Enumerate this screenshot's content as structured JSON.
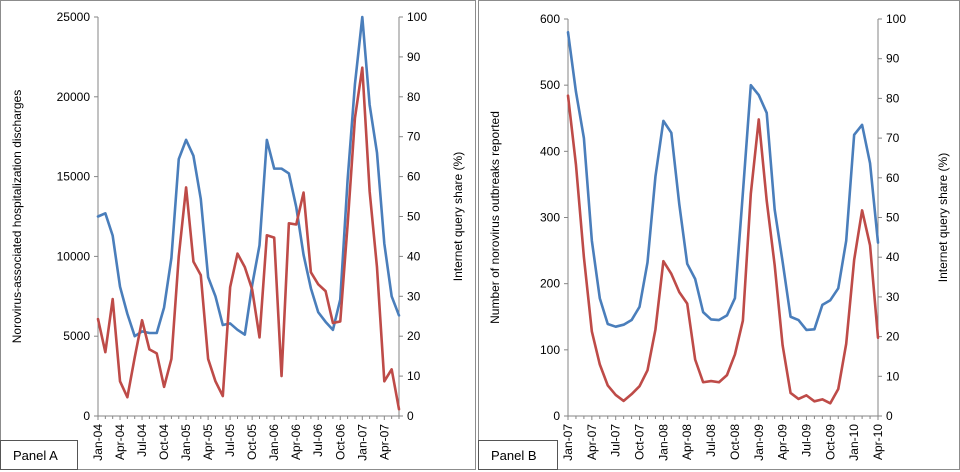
{
  "chart_data": [
    {
      "type": "line",
      "panel_label": "Panel A",
      "ylabel": "Norovirus-associated hospitalization discharges",
      "y2label": "Internet query share (%)",
      "ylim": [
        0,
        25000
      ],
      "y2lim": [
        0,
        100
      ],
      "yticks": [
        "0",
        "5000",
        "10000",
        "15000",
        "20000",
        "25000"
      ],
      "y2ticks": [
        "0",
        "10",
        "20",
        "30",
        "40",
        "50",
        "60",
        "70",
        "80",
        "90",
        "100"
      ],
      "xtick_labels": [
        "Jan-04",
        "Apr-04",
        "Jul-04",
        "Oct-04",
        "Jan-05",
        "Apr-05",
        "Jul-05",
        "Oct-05",
        "Jan-06",
        "Apr-06",
        "Jul-06",
        "Oct-06",
        "Jan-07",
        "Apr-07"
      ],
      "series": [
        {
          "color": "#4a7ebb",
          "axis": "left",
          "values": [
            12500,
            12700,
            11300,
            8100,
            6400,
            5000,
            5300,
            5200,
            5200,
            6800,
            9900,
            16100,
            17300,
            16300,
            13600,
            8700,
            7500,
            5700,
            5800,
            5400,
            5100,
            8200,
            10700,
            17300,
            15500,
            15500,
            15200,
            13100,
            10100,
            8000,
            6500,
            5900,
            5400,
            7300,
            14800,
            20800,
            25000,
            19500,
            16500,
            10800,
            7500,
            6300
          ]
        },
        {
          "color": "#be4b48",
          "axis": "right",
          "values": [
            24.3,
            16,
            29.3,
            8.7,
            4.7,
            14.7,
            24,
            16.7,
            15.7,
            7.3,
            14.3,
            40,
            57.3,
            38.7,
            35.3,
            14.3,
            8.7,
            5,
            32.3,
            40.7,
            37.3,
            31.7,
            19.7,
            45.3,
            44.7,
            10,
            48.3,
            48,
            56,
            36,
            33,
            31.3,
            23.3,
            23.7,
            48,
            74.7,
            87.3,
            56.3,
            37.3,
            8.7,
            11.7,
            1.7
          ]
        }
      ]
    },
    {
      "type": "line",
      "panel_label": "Panel B",
      "ylabel": "Number of norovirus outbreaks reported",
      "y2label": "Internet query share (%)",
      "ylim": [
        0,
        600
      ],
      "y2lim": [
        0,
        100
      ],
      "yticks": [
        "0",
        "100",
        "200",
        "300",
        "400",
        "500",
        "600"
      ],
      "y2ticks": [
        "0",
        "10",
        "20",
        "30",
        "40",
        "50",
        "60",
        "70",
        "80",
        "90",
        "100"
      ],
      "xtick_labels": [
        "Jan-07",
        "Apr-07",
        "Jul-07",
        "Oct-07",
        "Jan-08",
        "Apr-08",
        "Jul-08",
        "Oct-08",
        "Jan-09",
        "Apr-09",
        "Jul-09",
        "Oct-09",
        "Jan-10",
        "Apr-10"
      ],
      "series": [
        {
          "color": "#4a7ebb",
          "axis": "left",
          "values": [
            580,
            490,
            420,
            265,
            178,
            139,
            135,
            138,
            145,
            165,
            232,
            362,
            446,
            428,
            320,
            230,
            207,
            157,
            146,
            145,
            152,
            178,
            337,
            500,
            485,
            458,
            312,
            233,
            150,
            145,
            130,
            131,
            168,
            175,
            193,
            265,
            425,
            440,
            382,
            262
          ]
        },
        {
          "color": "#be4b48",
          "axis": "right",
          "values": [
            80.7,
            63.3,
            40,
            21.3,
            13,
            7.7,
            5.3,
            3.8,
            5.5,
            7.5,
            11.5,
            21.8,
            39,
            35.8,
            31.2,
            28.3,
            14.2,
            8.5,
            8.8,
            8.5,
            10.3,
            15.5,
            24,
            56,
            74.7,
            54.2,
            38,
            17.8,
            5.8,
            4.3,
            5.2,
            3.7,
            4.2,
            3.2,
            6.8,
            18.2,
            39.3,
            51.8,
            43,
            19.7
          ]
        }
      ]
    }
  ]
}
